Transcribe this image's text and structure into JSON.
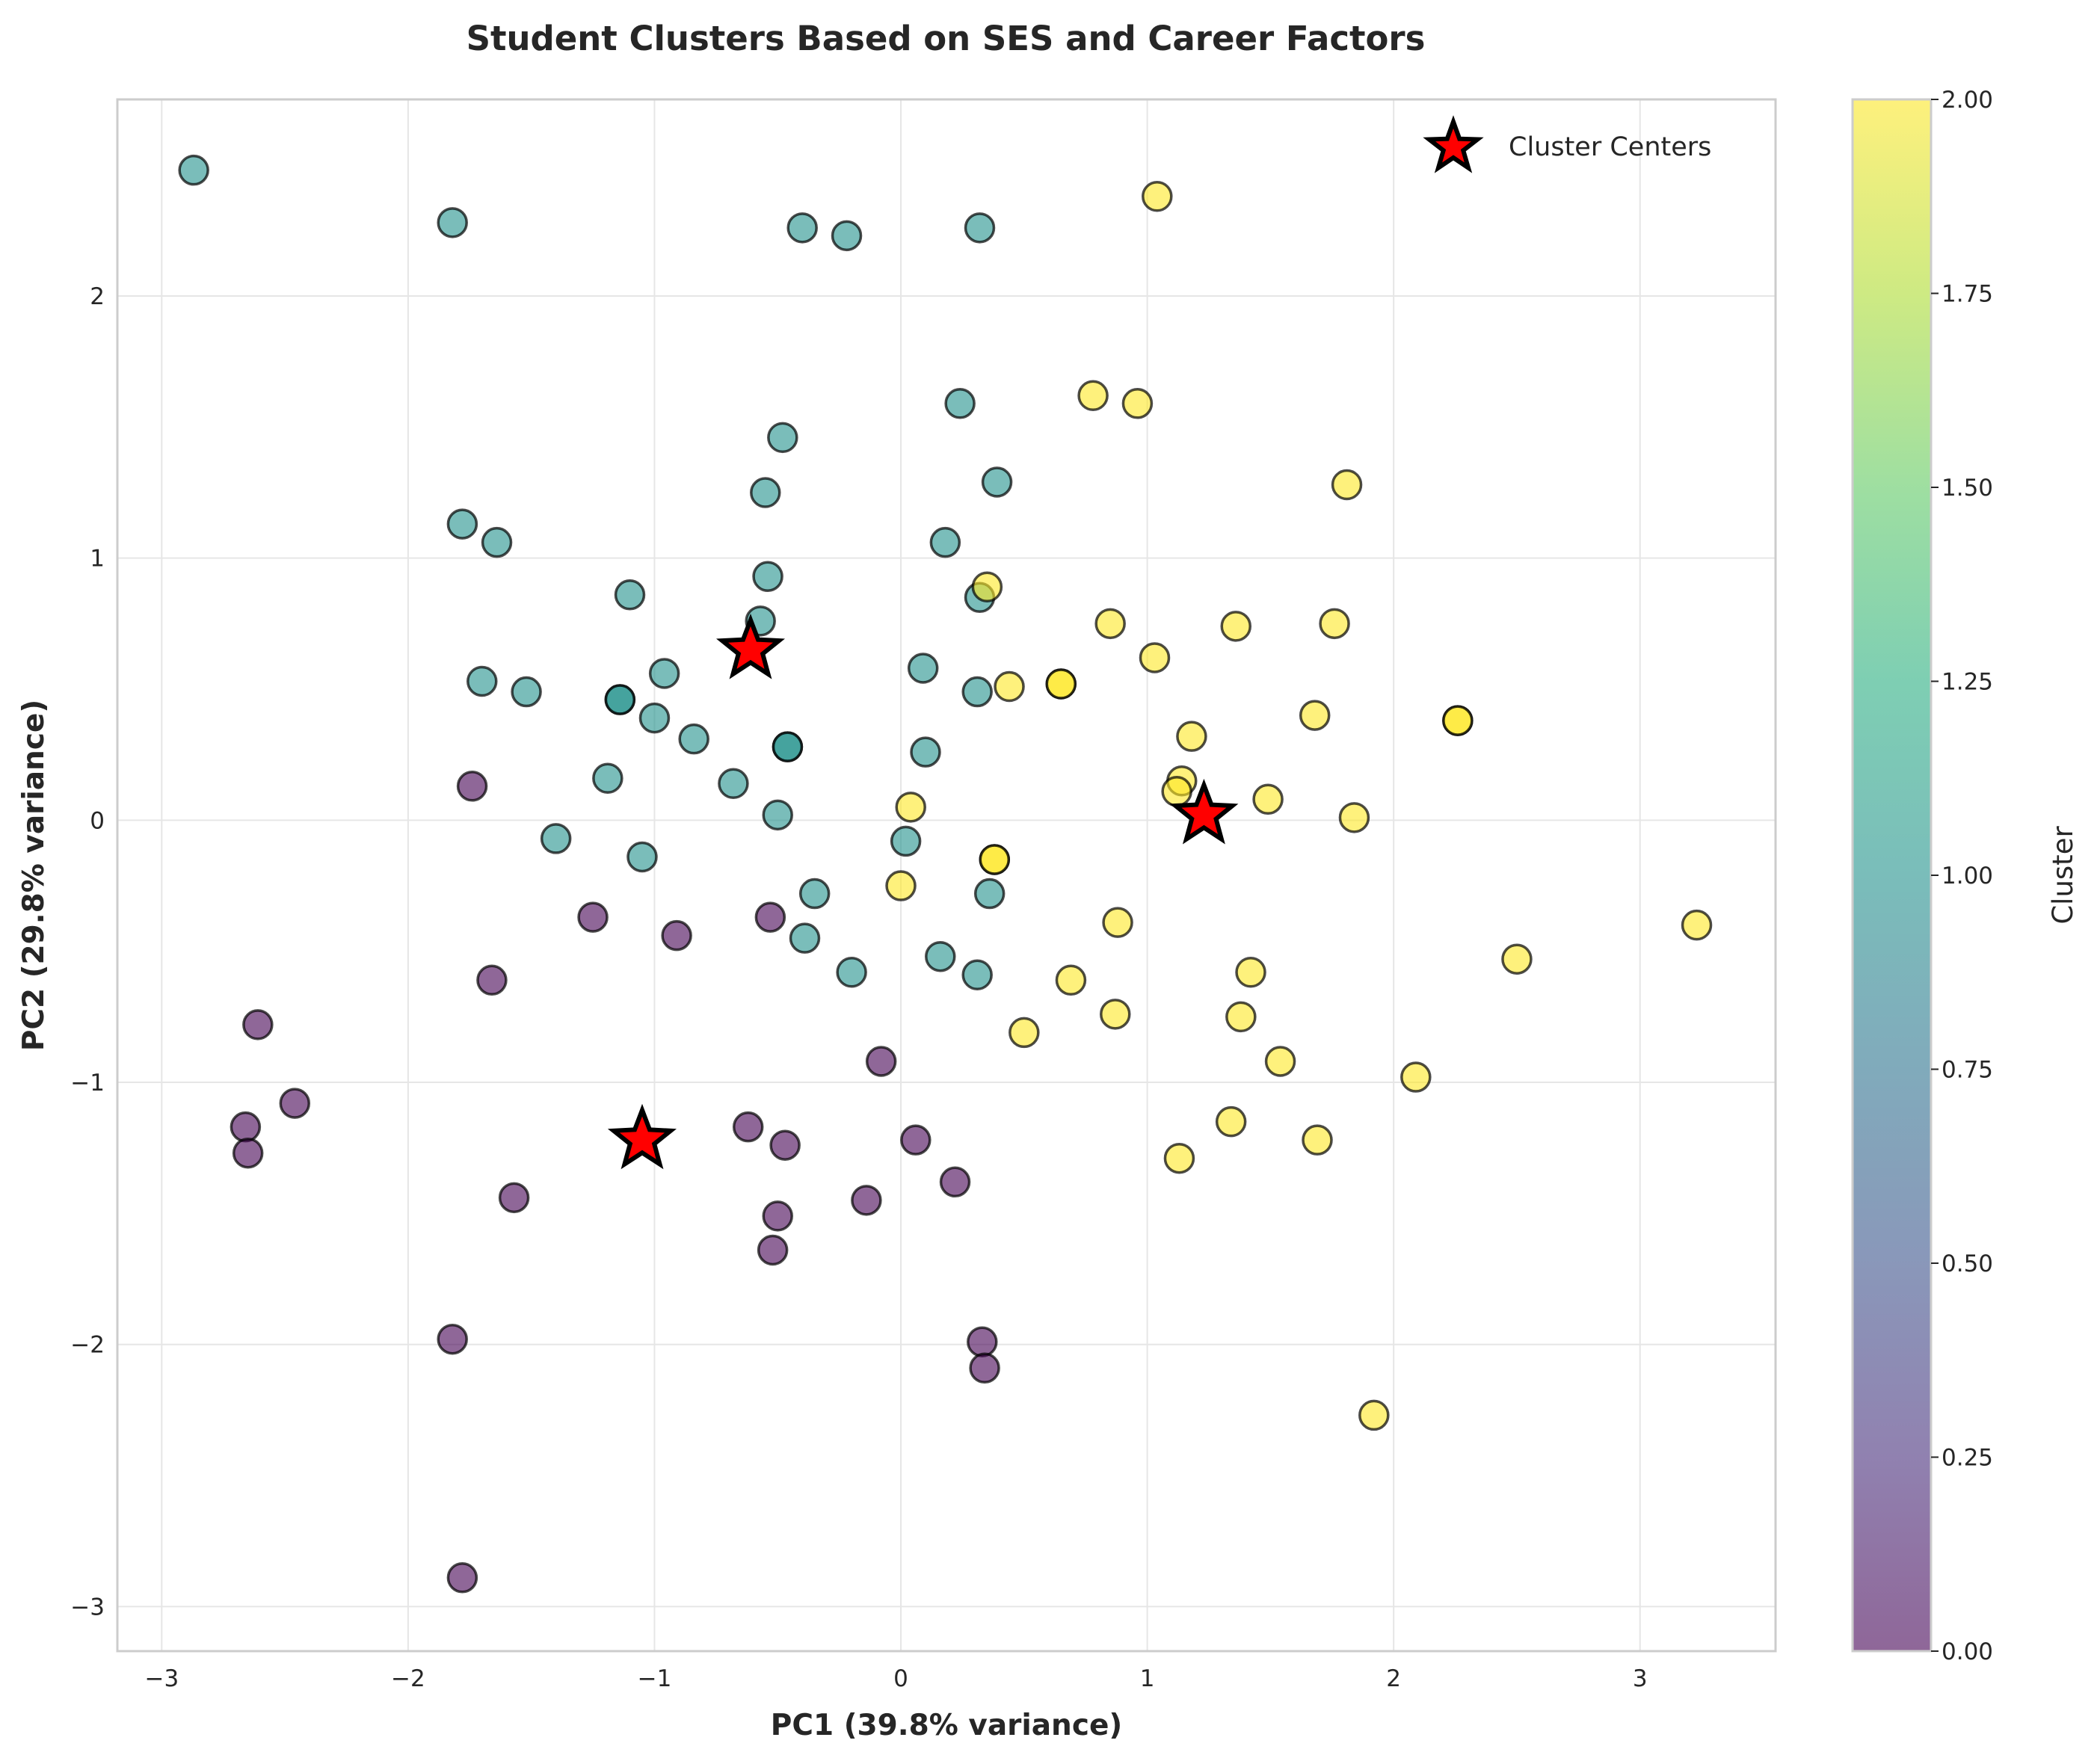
{
  "chart_data": {
    "type": "scatter",
    "title": "Student Clusters Based on SES and Career Factors",
    "xlabel": "PC1 (39.8% variance)",
    "ylabel": "PC2 (29.8% variance)",
    "xlim": [
      -3.18,
      3.55
    ],
    "ylim": [
      -3.17,
      2.75
    ],
    "xticks": [
      -3,
      -2,
      -1,
      0,
      1,
      2,
      3
    ],
    "yticks": [
      -3,
      -2,
      -1,
      0,
      1,
      2
    ],
    "grid": true,
    "legend": {
      "position": "top-right",
      "entries": [
        "Cluster Centers"
      ]
    },
    "colorbar": {
      "label": "Cluster",
      "min": 0,
      "max": 2,
      "ticks": [
        "0.00",
        "0.25",
        "0.50",
        "0.75",
        "1.00",
        "1.25",
        "1.50",
        "1.75",
        "2.00"
      ]
    },
    "colors": {
      "cluster0": "#440154",
      "cluster1": "#21918c",
      "cluster2": "#fde725",
      "center_fill": "#ff0000",
      "center_edge": "#000000",
      "point_edge": "#000000",
      "grid": "#e6e6e6",
      "frame": "#cccccc"
    },
    "points": [
      {
        "x": -2.87,
        "y": 2.48,
        "c": 1
      },
      {
        "x": -1.82,
        "y": 2.28,
        "c": 1
      },
      {
        "x": -0.4,
        "y": 2.26,
        "c": 1
      },
      {
        "x": -0.22,
        "y": 2.23,
        "c": 1
      },
      {
        "x": 0.32,
        "y": 2.26,
        "c": 1
      },
      {
        "x": 0.24,
        "y": 1.59,
        "c": 1
      },
      {
        "x": -0.48,
        "y": 1.46,
        "c": 1
      },
      {
        "x": 0.39,
        "y": 1.29,
        "c": 1
      },
      {
        "x": -0.55,
        "y": 1.25,
        "c": 1
      },
      {
        "x": -1.78,
        "y": 1.13,
        "c": 1
      },
      {
        "x": -1.64,
        "y": 1.06,
        "c": 1
      },
      {
        "x": 0.18,
        "y": 1.06,
        "c": 1
      },
      {
        "x": -0.54,
        "y": 0.93,
        "c": 1
      },
      {
        "x": -1.1,
        "y": 0.86,
        "c": 1
      },
      {
        "x": 0.32,
        "y": 0.85,
        "c": 1
      },
      {
        "x": -0.57,
        "y": 0.76,
        "c": 1
      },
      {
        "x": 0.09,
        "y": 0.58,
        "c": 1
      },
      {
        "x": -0.96,
        "y": 0.56,
        "c": 1
      },
      {
        "x": -1.7,
        "y": 0.53,
        "c": 1
      },
      {
        "x": -1.52,
        "y": 0.49,
        "c": 1
      },
      {
        "x": 0.31,
        "y": 0.49,
        "c": 1
      },
      {
        "x": -1.14,
        "y": 0.46,
        "c": 1
      },
      {
        "x": -1.14,
        "y": 0.46,
        "c": 1
      },
      {
        "x": -1.0,
        "y": 0.39,
        "c": 1
      },
      {
        "x": -0.84,
        "y": 0.31,
        "c": 1
      },
      {
        "x": -0.46,
        "y": 0.28,
        "c": 1
      },
      {
        "x": -0.46,
        "y": 0.28,
        "c": 1
      },
      {
        "x": 0.1,
        "y": 0.26,
        "c": 1
      },
      {
        "x": -1.19,
        "y": 0.16,
        "c": 1
      },
      {
        "x": -0.68,
        "y": 0.14,
        "c": 1
      },
      {
        "x": -0.5,
        "y": 0.02,
        "c": 1
      },
      {
        "x": -1.4,
        "y": -0.07,
        "c": 1
      },
      {
        "x": 0.02,
        "y": -0.08,
        "c": 1
      },
      {
        "x": -1.05,
        "y": -0.14,
        "c": 1
      },
      {
        "x": -0.35,
        "y": -0.28,
        "c": 1
      },
      {
        "x": 0.36,
        "y": -0.28,
        "c": 1
      },
      {
        "x": -0.39,
        "y": -0.45,
        "c": 1
      },
      {
        "x": 0.16,
        "y": -0.52,
        "c": 1
      },
      {
        "x": -0.2,
        "y": -0.58,
        "c": 1
      },
      {
        "x": 0.31,
        "y": -0.59,
        "c": 1
      },
      {
        "x": -1.74,
        "y": 0.13,
        "c": 0
      },
      {
        "x": -1.25,
        "y": -0.37,
        "c": 0
      },
      {
        "x": -0.53,
        "y": -0.37,
        "c": 0
      },
      {
        "x": -0.91,
        "y": -0.44,
        "c": 0
      },
      {
        "x": -1.66,
        "y": -0.61,
        "c": 0
      },
      {
        "x": -2.61,
        "y": -0.78,
        "c": 0
      },
      {
        "x": -0.08,
        "y": -0.92,
        "c": 0
      },
      {
        "x": -2.46,
        "y": -1.08,
        "c": 0
      },
      {
        "x": -2.66,
        "y": -1.17,
        "c": 0
      },
      {
        "x": -0.62,
        "y": -1.17,
        "c": 0
      },
      {
        "x": 0.06,
        "y": -1.22,
        "c": 0
      },
      {
        "x": -0.47,
        "y": -1.24,
        "c": 0
      },
      {
        "x": -2.65,
        "y": -1.27,
        "c": 0
      },
      {
        "x": 0.22,
        "y": -1.38,
        "c": 0
      },
      {
        "x": -1.57,
        "y": -1.44,
        "c": 0
      },
      {
        "x": -0.14,
        "y": -1.45,
        "c": 0
      },
      {
        "x": -0.5,
        "y": -1.51,
        "c": 0
      },
      {
        "x": -0.52,
        "y": -1.64,
        "c": 0
      },
      {
        "x": -1.82,
        "y": -1.98,
        "c": 0
      },
      {
        "x": 0.33,
        "y": -1.99,
        "c": 0
      },
      {
        "x": 0.34,
        "y": -2.09,
        "c": 0
      },
      {
        "x": -1.78,
        "y": -2.89,
        "c": 0
      },
      {
        "x": 1.04,
        "y": 2.38,
        "c": 2
      },
      {
        "x": 0.78,
        "y": 1.62,
        "c": 2
      },
      {
        "x": 0.96,
        "y": 1.59,
        "c": 2
      },
      {
        "x": 1.81,
        "y": 1.28,
        "c": 2
      },
      {
        "x": 0.35,
        "y": 0.89,
        "c": 2
      },
      {
        "x": 0.85,
        "y": 0.75,
        "c": 2
      },
      {
        "x": 1.36,
        "y": 0.74,
        "c": 2
      },
      {
        "x": 1.76,
        "y": 0.75,
        "c": 2
      },
      {
        "x": 1.03,
        "y": 0.62,
        "c": 2
      },
      {
        "x": 0.65,
        "y": 0.52,
        "c": 2
      },
      {
        "x": 0.65,
        "y": 0.52,
        "c": 2
      },
      {
        "x": 0.44,
        "y": 0.51,
        "c": 2
      },
      {
        "x": 1.68,
        "y": 0.4,
        "c": 2
      },
      {
        "x": 2.26,
        "y": 0.38,
        "c": 2
      },
      {
        "x": 2.26,
        "y": 0.38,
        "c": 2
      },
      {
        "x": 1.18,
        "y": 0.32,
        "c": 2
      },
      {
        "x": 1.14,
        "y": 0.15,
        "c": 2
      },
      {
        "x": 1.12,
        "y": 0.11,
        "c": 2
      },
      {
        "x": 1.49,
        "y": 0.08,
        "c": 2
      },
      {
        "x": 0.04,
        "y": 0.05,
        "c": 2
      },
      {
        "x": 1.84,
        "y": 0.01,
        "c": 2
      },
      {
        "x": 0.38,
        "y": -0.15,
        "c": 2
      },
      {
        "x": 0.38,
        "y": -0.15,
        "c": 2
      },
      {
        "x": 0.0,
        "y": -0.25,
        "c": 2
      },
      {
        "x": 0.88,
        "y": -0.39,
        "c": 2
      },
      {
        "x": 3.23,
        "y": -0.4,
        "c": 2
      },
      {
        "x": 2.5,
        "y": -0.53,
        "c": 2
      },
      {
        "x": 1.42,
        "y": -0.58,
        "c": 2
      },
      {
        "x": 0.69,
        "y": -0.61,
        "c": 2
      },
      {
        "x": 0.87,
        "y": -0.74,
        "c": 2
      },
      {
        "x": 1.38,
        "y": -0.75,
        "c": 2
      },
      {
        "x": 0.5,
        "y": -0.81,
        "c": 2
      },
      {
        "x": 1.54,
        "y": -0.92,
        "c": 2
      },
      {
        "x": 2.09,
        "y": -0.98,
        "c": 2
      },
      {
        "x": 1.34,
        "y": -1.15,
        "c": 2
      },
      {
        "x": 1.69,
        "y": -1.22,
        "c": 2
      },
      {
        "x": 1.13,
        "y": -1.29,
        "c": 2
      },
      {
        "x": 1.92,
        "y": -2.27,
        "c": 2
      }
    ],
    "centers": [
      {
        "x": -0.61,
        "y": 0.65
      },
      {
        "x": 1.23,
        "y": 0.02
      },
      {
        "x": -1.05,
        "y": -1.22
      }
    ]
  }
}
